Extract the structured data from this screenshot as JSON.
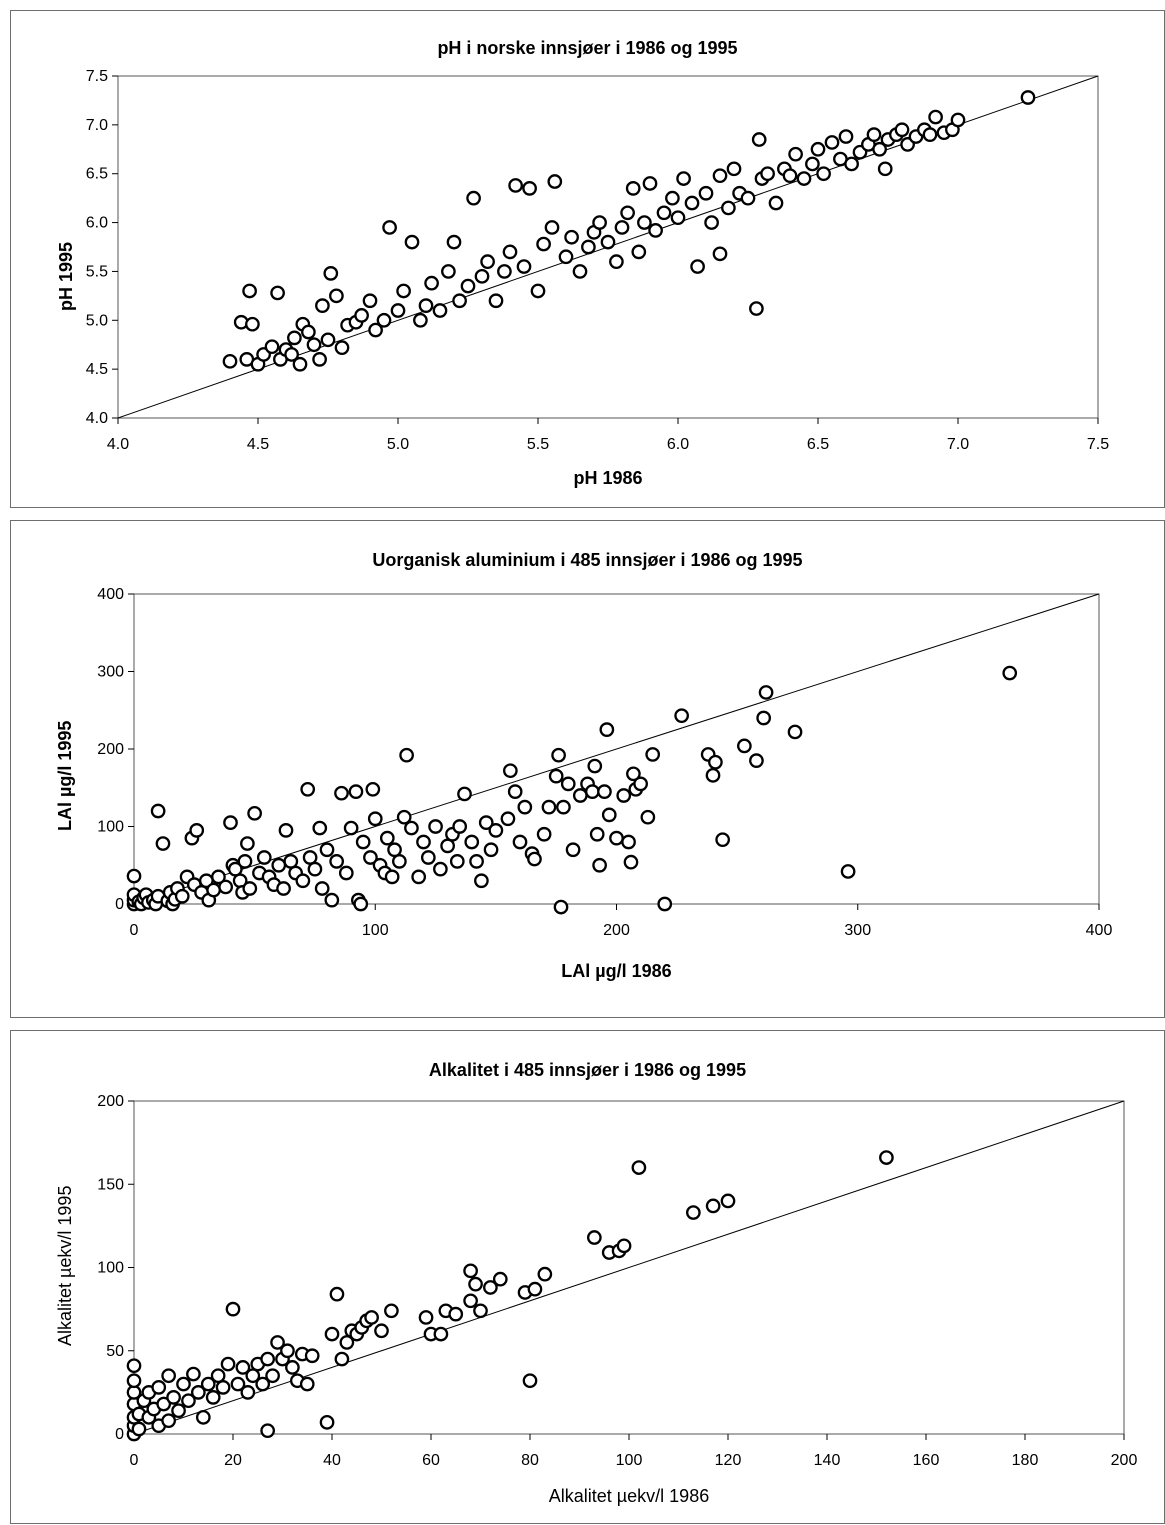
{
  "chart_data": [
    {
      "type": "scatter",
      "title": "pH i norske innsjøer i 1986 og 1995",
      "xlabel": "pH 1986",
      "ylabel": "pH 1995",
      "xlim": [
        4.0,
        7.5
      ],
      "ylim": [
        4.0,
        7.5
      ],
      "xticks": [
        "4.0",
        "4.5",
        "5.0",
        "5.5",
        "6.0",
        "6.5",
        "7.0",
        "7.5"
      ],
      "yticks": [
        "4.0",
        "4.5",
        "5.0",
        "5.5",
        "6.0",
        "6.5",
        "7.0",
        "7.5"
      ],
      "reference_line": [
        [
          4.0,
          4.0
        ],
        [
          7.5,
          7.5
        ]
      ],
      "grid": false,
      "points": [
        [
          4.4,
          4.58
        ],
        [
          4.44,
          4.98
        ],
        [
          4.46,
          4.6
        ],
        [
          4.47,
          5.3
        ],
        [
          4.48,
          4.96
        ],
        [
          4.5,
          4.55
        ],
        [
          4.52,
          4.65
        ],
        [
          4.55,
          4.73
        ],
        [
          4.57,
          5.28
        ],
        [
          4.58,
          4.6
        ],
        [
          4.6,
          4.7
        ],
        [
          4.62,
          4.65
        ],
        [
          4.63,
          4.82
        ],
        [
          4.65,
          4.55
        ],
        [
          4.66,
          4.96
        ],
        [
          4.68,
          4.88
        ],
        [
          4.7,
          4.75
        ],
        [
          4.72,
          4.6
        ],
        [
          4.73,
          5.15
        ],
        [
          4.75,
          4.8
        ],
        [
          4.76,
          5.48
        ],
        [
          4.78,
          5.25
        ],
        [
          4.8,
          4.72
        ],
        [
          4.82,
          4.95
        ],
        [
          4.85,
          4.98
        ],
        [
          4.87,
          5.05
        ],
        [
          4.9,
          5.2
        ],
        [
          4.92,
          4.9
        ],
        [
          4.95,
          5.0
        ],
        [
          4.97,
          5.95
        ],
        [
          5.0,
          5.1
        ],
        [
          5.02,
          5.3
        ],
        [
          5.05,
          5.8
        ],
        [
          5.08,
          5.0
        ],
        [
          5.1,
          5.15
        ],
        [
          5.12,
          5.38
        ],
        [
          5.15,
          5.1
        ],
        [
          5.18,
          5.5
        ],
        [
          5.2,
          5.8
        ],
        [
          5.22,
          5.2
        ],
        [
          5.25,
          5.35
        ],
        [
          5.27,
          6.25
        ],
        [
          5.3,
          5.45
        ],
        [
          5.32,
          5.6
        ],
        [
          5.35,
          5.2
        ],
        [
          5.38,
          5.5
        ],
        [
          5.4,
          5.7
        ],
        [
          5.42,
          6.38
        ],
        [
          5.45,
          5.55
        ],
        [
          5.47,
          6.35
        ],
        [
          5.5,
          5.3
        ],
        [
          5.52,
          5.78
        ],
        [
          5.55,
          5.95
        ],
        [
          5.56,
          6.42
        ],
        [
          5.6,
          5.65
        ],
        [
          5.62,
          5.85
        ],
        [
          5.65,
          5.5
        ],
        [
          5.68,
          5.75
        ],
        [
          5.7,
          5.9
        ],
        [
          5.72,
          6.0
        ],
        [
          5.75,
          5.8
        ],
        [
          5.78,
          5.6
        ],
        [
          5.8,
          5.95
        ],
        [
          5.82,
          6.1
        ],
        [
          5.84,
          6.35
        ],
        [
          5.86,
          5.7
        ],
        [
          5.88,
          6.0
        ],
        [
          5.9,
          6.4
        ],
        [
          5.92,
          5.92
        ],
        [
          5.95,
          6.1
        ],
        [
          5.98,
          6.25
        ],
        [
          6.0,
          6.05
        ],
        [
          6.02,
          6.45
        ],
        [
          6.05,
          6.2
        ],
        [
          6.07,
          5.55
        ],
        [
          6.1,
          6.3
        ],
        [
          6.12,
          6.0
        ],
        [
          6.15,
          6.48
        ],
        [
          6.15,
          5.68
        ],
        [
          6.18,
          6.15
        ],
        [
          6.2,
          6.55
        ],
        [
          6.22,
          6.3
        ],
        [
          6.25,
          6.25
        ],
        [
          6.28,
          5.12
        ],
        [
          6.29,
          6.85
        ],
        [
          6.3,
          6.45
        ],
        [
          6.32,
          6.5
        ],
        [
          6.35,
          6.2
        ],
        [
          6.38,
          6.55
        ],
        [
          6.4,
          6.48
        ],
        [
          6.42,
          6.7
        ],
        [
          6.45,
          6.45
        ],
        [
          6.48,
          6.6
        ],
        [
          6.5,
          6.75
        ],
        [
          6.52,
          6.5
        ],
        [
          6.55,
          6.82
        ],
        [
          6.58,
          6.65
        ],
        [
          6.6,
          6.88
        ],
        [
          6.62,
          6.6
        ],
        [
          6.65,
          6.72
        ],
        [
          6.68,
          6.8
        ],
        [
          6.7,
          6.9
        ],
        [
          6.72,
          6.75
        ],
        [
          6.74,
          6.55
        ],
        [
          6.75,
          6.85
        ],
        [
          6.78,
          6.9
        ],
        [
          6.8,
          6.95
        ],
        [
          6.82,
          6.8
        ],
        [
          6.85,
          6.88
        ],
        [
          6.88,
          6.95
        ],
        [
          6.9,
          6.9
        ],
        [
          6.92,
          7.08
        ],
        [
          6.95,
          6.92
        ],
        [
          6.98,
          6.95
        ],
        [
          7.0,
          7.05
        ],
        [
          7.25,
          7.28
        ]
      ]
    },
    {
      "type": "scatter",
      "title": "Uorganisk aluminium i 485 innsjøer i 1986 og 1995",
      "xlabel": "LAl µg/l  1986",
      "ylabel": "LAl µg/l 1995",
      "xlim": [
        0,
        400
      ],
      "ylim": [
        0,
        400
      ],
      "xticks": [
        "0",
        "100",
        "200",
        "300",
        "400"
      ],
      "yticks": [
        "0",
        "100",
        "200",
        "300",
        "400"
      ],
      "reference_line": [
        [
          0,
          0
        ],
        [
          400,
          400
        ]
      ],
      "grid": false,
      "points": [
        [
          0,
          0
        ],
        [
          0,
          5
        ],
        [
          0,
          12
        ],
        [
          0,
          36
        ],
        [
          2,
          3
        ],
        [
          3,
          0
        ],
        [
          4,
          8
        ],
        [
          5,
          12
        ],
        [
          6,
          2
        ],
        [
          8,
          5
        ],
        [
          9,
          0
        ],
        [
          10,
          10
        ],
        [
          10,
          120
        ],
        [
          12,
          78
        ],
        [
          14,
          4
        ],
        [
          15,
          15
        ],
        [
          16,
          0
        ],
        [
          17,
          6
        ],
        [
          18,
          20
        ],
        [
          20,
          10
        ],
        [
          22,
          35
        ],
        [
          24,
          85
        ],
        [
          25,
          25
        ],
        [
          26,
          95
        ],
        [
          28,
          15
        ],
        [
          30,
          30
        ],
        [
          31,
          5
        ],
        [
          33,
          18
        ],
        [
          35,
          35
        ],
        [
          38,
          22
        ],
        [
          40,
          105
        ],
        [
          41,
          50
        ],
        [
          42,
          45
        ],
        [
          44,
          30
        ],
        [
          45,
          15
        ],
        [
          46,
          55
        ],
        [
          47,
          78
        ],
        [
          48,
          20
        ],
        [
          50,
          117
        ],
        [
          52,
          40
        ],
        [
          54,
          60
        ],
        [
          56,
          35
        ],
        [
          58,
          25
        ],
        [
          60,
          50
        ],
        [
          62,
          20
        ],
        [
          63,
          95
        ],
        [
          65,
          55
        ],
        [
          67,
          40
        ],
        [
          70,
          30
        ],
        [
          72,
          148
        ],
        [
          73,
          60
        ],
        [
          75,
          45
        ],
        [
          77,
          98
        ],
        [
          78,
          20
        ],
        [
          80,
          70
        ],
        [
          82,
          5
        ],
        [
          84,
          55
        ],
        [
          86,
          143
        ],
        [
          88,
          40
        ],
        [
          90,
          98
        ],
        [
          92,
          145
        ],
        [
          93,
          5
        ],
        [
          94,
          0
        ],
        [
          95,
          80
        ],
        [
          98,
          60
        ],
        [
          99,
          148
        ],
        [
          100,
          110
        ],
        [
          102,
          50
        ],
        [
          104,
          40
        ],
        [
          105,
          85
        ],
        [
          107,
          35
        ],
        [
          108,
          70
        ],
        [
          110,
          55
        ],
        [
          112,
          112
        ],
        [
          113,
          192
        ],
        [
          115,
          98
        ],
        [
          118,
          35
        ],
        [
          120,
          80
        ],
        [
          122,
          60
        ],
        [
          125,
          100
        ],
        [
          127,
          45
        ],
        [
          130,
          75
        ],
        [
          132,
          90
        ],
        [
          134,
          55
        ],
        [
          135,
          100
        ],
        [
          137,
          142
        ],
        [
          140,
          80
        ],
        [
          142,
          55
        ],
        [
          144,
          30
        ],
        [
          146,
          105
        ],
        [
          148,
          70
        ],
        [
          150,
          95
        ],
        [
          155,
          110
        ],
        [
          156,
          172
        ],
        [
          158,
          145
        ],
        [
          160,
          80
        ],
        [
          162,
          125
        ],
        [
          165,
          65
        ],
        [
          166,
          58
        ],
        [
          170,
          90
        ],
        [
          172,
          125
        ],
        [
          175,
          165
        ],
        [
          176,
          192
        ],
        [
          177,
          -4
        ],
        [
          178,
          125
        ],
        [
          180,
          155
        ],
        [
          182,
          70
        ],
        [
          185,
          140
        ],
        [
          188,
          155
        ],
        [
          190,
          145
        ],
        [
          191,
          178
        ],
        [
          192,
          90
        ],
        [
          193,
          50
        ],
        [
          195,
          145
        ],
        [
          196,
          225
        ],
        [
          197,
          115
        ],
        [
          200,
          85
        ],
        [
          203,
          140
        ],
        [
          205,
          80
        ],
        [
          206,
          54
        ],
        [
          207,
          168
        ],
        [
          208,
          148
        ],
        [
          210,
          155
        ],
        [
          213,
          112
        ],
        [
          215,
          193
        ],
        [
          220,
          0
        ],
        [
          227,
          243
        ],
        [
          238,
          193
        ],
        [
          240,
          166
        ],
        [
          241,
          183
        ],
        [
          244,
          83
        ],
        [
          253,
          204
        ],
        [
          258,
          185
        ],
        [
          261,
          240
        ],
        [
          262,
          273
        ],
        [
          274,
          222
        ],
        [
          296,
          42
        ],
        [
          363,
          298
        ]
      ]
    },
    {
      "type": "scatter",
      "title": "Alkalitet i 485 innsjøer i 1986 og 1995",
      "xlabel": "Alkalitet µekv/l 1986",
      "ylabel": "Alkalitet µekv/l 1995",
      "xlim": [
        0,
        200
      ],
      "ylim": [
        0,
        200
      ],
      "xticks": [
        "0",
        "20",
        "40",
        "60",
        "80",
        "100",
        "120",
        "140",
        "160",
        "180",
        "200"
      ],
      "yticks": [
        "0",
        "50",
        "100",
        "150",
        "200"
      ],
      "reference_line": [
        [
          0,
          0
        ],
        [
          200,
          200
        ]
      ],
      "grid": false,
      "points": [
        [
          0,
          0
        ],
        [
          0,
          5
        ],
        [
          0,
          10
        ],
        [
          0,
          18
        ],
        [
          0,
          25
        ],
        [
          0,
          32
        ],
        [
          0,
          41
        ],
        [
          1,
          12
        ],
        [
          1,
          3
        ],
        [
          2,
          20
        ],
        [
          3,
          10
        ],
        [
          3,
          25
        ],
        [
          4,
          15
        ],
        [
          5,
          5
        ],
        [
          5,
          28
        ],
        [
          6,
          18
        ],
        [
          7,
          8
        ],
        [
          7,
          35
        ],
        [
          8,
          22
        ],
        [
          9,
          14
        ],
        [
          10,
          30
        ],
        [
          11,
          20
        ],
        [
          12,
          36
        ],
        [
          13,
          25
        ],
        [
          14,
          10
        ],
        [
          15,
          30
        ],
        [
          16,
          22
        ],
        [
          17,
          35
        ],
        [
          18,
          28
        ],
        [
          19,
          42
        ],
        [
          20,
          75
        ],
        [
          21,
          30
        ],
        [
          22,
          40
        ],
        [
          23,
          25
        ],
        [
          24,
          35
        ],
        [
          25,
          42
        ],
        [
          26,
          30
        ],
        [
          27,
          45
        ],
        [
          27,
          2
        ],
        [
          28,
          35
        ],
        [
          29,
          55
        ],
        [
          30,
          45
        ],
        [
          31,
          50
        ],
        [
          32,
          40
        ],
        [
          33,
          32
        ],
        [
          34,
          48
        ],
        [
          35,
          30
        ],
        [
          36,
          47
        ],
        [
          39,
          7
        ],
        [
          40,
          60
        ],
        [
          41,
          84
        ],
        [
          42,
          45
        ],
        [
          43,
          55
        ],
        [
          44,
          62
        ],
        [
          45,
          60
        ],
        [
          46,
          64
        ],
        [
          47,
          68
        ],
        [
          48,
          70
        ],
        [
          50,
          62
        ],
        [
          52,
          74
        ],
        [
          59,
          70
        ],
        [
          60,
          60
        ],
        [
          62,
          60
        ],
        [
          63,
          74
        ],
        [
          65,
          72
        ],
        [
          68,
          80
        ],
        [
          68,
          98
        ],
        [
          69,
          90
        ],
        [
          70,
          74
        ],
        [
          72,
          88
        ],
        [
          74,
          93
        ],
        [
          79,
          85
        ],
        [
          80,
          32
        ],
        [
          81,
          87
        ],
        [
          83,
          96
        ],
        [
          93,
          118
        ],
        [
          96,
          109
        ],
        [
          98,
          110
        ],
        [
          99,
          113
        ],
        [
          102,
          160
        ],
        [
          113,
          133
        ],
        [
          117,
          137
        ],
        [
          120,
          140
        ],
        [
          152,
          166
        ]
      ]
    }
  ]
}
